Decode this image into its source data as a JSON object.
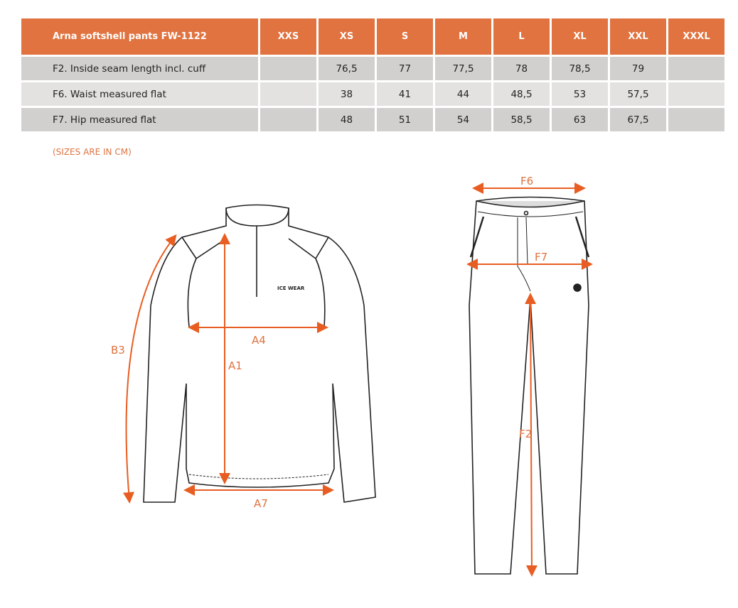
{
  "table": {
    "title": "Arna softshell pants FW-1122",
    "sizes": [
      "XXS",
      "XS",
      "S",
      "M",
      "L",
      "XL",
      "XXL",
      "XXXL"
    ],
    "rows": [
      {
        "label": "F2. Inside seam length incl. cuff",
        "values": [
          "",
          "76,5",
          "77",
          "77,5",
          "78",
          "78,5",
          "79",
          ""
        ]
      },
      {
        "label": "F6. Waist measured flat",
        "values": [
          "",
          "38",
          "41",
          "44",
          "48,5",
          "53",
          "57,5",
          ""
        ]
      },
      {
        "label": "F7. Hip measured flat",
        "values": [
          "",
          "48",
          "51",
          "54",
          "58,5",
          "63",
          "67,5",
          ""
        ]
      }
    ]
  },
  "note": "(SIZES ARE IN CM)",
  "diagram": {
    "jacket_labels": [
      "B3",
      "A4",
      "A1",
      "A7"
    ],
    "pants_labels": [
      "F6",
      "F7",
      "F2"
    ],
    "logo": "ICE WEAR",
    "accent": "#e07340"
  }
}
